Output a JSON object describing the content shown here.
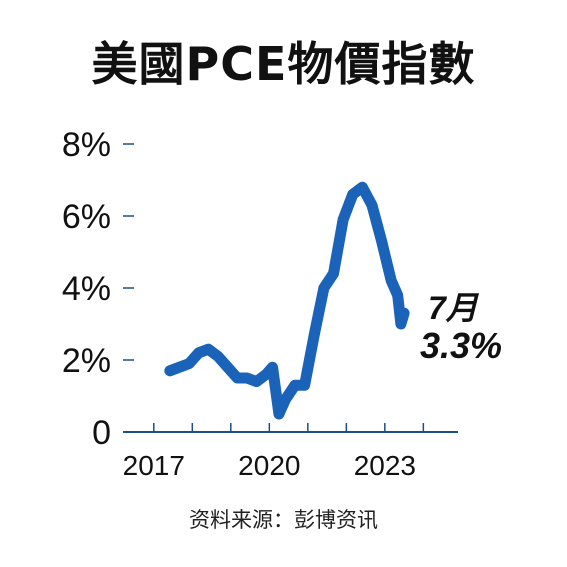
{
  "title": "美國PCE物價指數",
  "source": "资料来源：彭博资讯",
  "annotation": {
    "month": "7月",
    "value": "3.3%"
  },
  "colors": {
    "line": "#1a63b8",
    "axis": "#1b4f86",
    "text": "#111111"
  },
  "chart_data": {
    "type": "line",
    "title": "美國PCE物價指數",
    "xlabel": "",
    "ylabel": "",
    "x_ticks": [
      "2017",
      "2020",
      "2023"
    ],
    "y_ticks": [
      "0",
      "2%",
      "4%",
      "6%",
      "8%"
    ],
    "xlim": [
      2016.2,
      2024.9
    ],
    "ylim": [
      0,
      8
    ],
    "grid": false,
    "series": [
      {
        "x": [
          "2017-06",
          "2017-09",
          "2017-12",
          "2018-03",
          "2018-06",
          "2018-09",
          "2018-12",
          "2019-03",
          "2019-06",
          "2019-09",
          "2019-12",
          "2020-02",
          "2020-04",
          "2020-06",
          "2020-09",
          "2020-12",
          "2021-03",
          "2021-06",
          "2021-09",
          "2021-12",
          "2022-03",
          "2022-06",
          "2022-09",
          "2022-12",
          "2023-03",
          "2023-05",
          "2023-06",
          "2023-07"
        ],
        "values": [
          1.7,
          1.8,
          1.9,
          2.2,
          2.3,
          2.1,
          1.8,
          1.5,
          1.5,
          1.4,
          1.6,
          1.8,
          0.5,
          0.9,
          1.3,
          1.3,
          2.7,
          4.0,
          4.4,
          5.9,
          6.6,
          6.8,
          6.3,
          5.3,
          4.2,
          3.8,
          3.0,
          3.3
        ]
      }
    ]
  }
}
